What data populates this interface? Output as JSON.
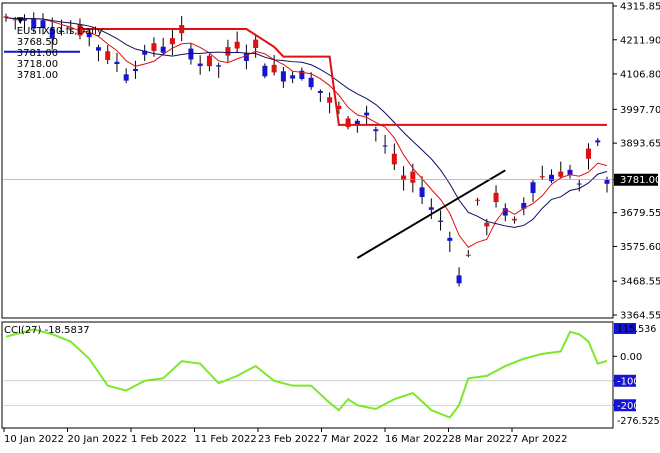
{
  "main_panel": {
    "symbol_line": {
      "symbol": "EUSTX50.fs,Daily",
      "open": "3768.50",
      "high": "3781.00",
      "low": "3718.00",
      "close": "3781.00"
    },
    "price_badge": "3781.00",
    "price_ticks": [
      "4315.85",
      "4211.90",
      "4106.80",
      "3997.70",
      "3893.65",
      "3781.00",
      "3679.55",
      "3575.60",
      "3468.55",
      "3364.55"
    ]
  },
  "cci_panel": {
    "label": "CCI(27) -18.5837",
    "badge_top": "115.536",
    "ticks": [
      "0.00",
      "-100",
      "-200"
    ],
    "bottom_value": "-276.5251"
  },
  "date_labels": [
    "10 Jan 2022",
    "20 Jan 2022",
    "1 Feb 2022",
    "11 Feb 2022",
    "23 Feb 2022",
    "7 Mar 2022",
    "16 Mar 2022",
    "28 Mar 2022",
    "7 Apr 2022"
  ],
  "colors": {
    "bull": "#1414d2",
    "bear": "#e01010",
    "ma_fast": "#e01010",
    "ma_slow": "#101060",
    "stop_line": "#e01010",
    "blue_level": "#1414d2",
    "trend_line": "#000000",
    "cci_line": "#7de82a",
    "badge_bg": "#000000",
    "badge_fg": "#ffffff",
    "cci_badge_bg": "#1414d2"
  },
  "chart_data": [
    {
      "type": "candlestick",
      "title": "EUSTX50.fs,Daily",
      "ylim": [
        3364.55,
        4315.85
      ],
      "x": [
        "10 Jan 2022",
        "20 Jan 2022",
        "1 Feb 2022",
        "11 Feb 2022",
        "23 Feb 2022",
        "7 Mar 2022",
        "16 Mar 2022",
        "28 Mar 2022",
        "7 Apr 2022"
      ],
      "last_close": 3781.0
    },
    {
      "type": "line",
      "title": "CCI(27) -18.5837",
      "ylim": [
        -276.5251,
        115.536
      ],
      "levels": [
        0,
        -100,
        -200
      ]
    }
  ]
}
